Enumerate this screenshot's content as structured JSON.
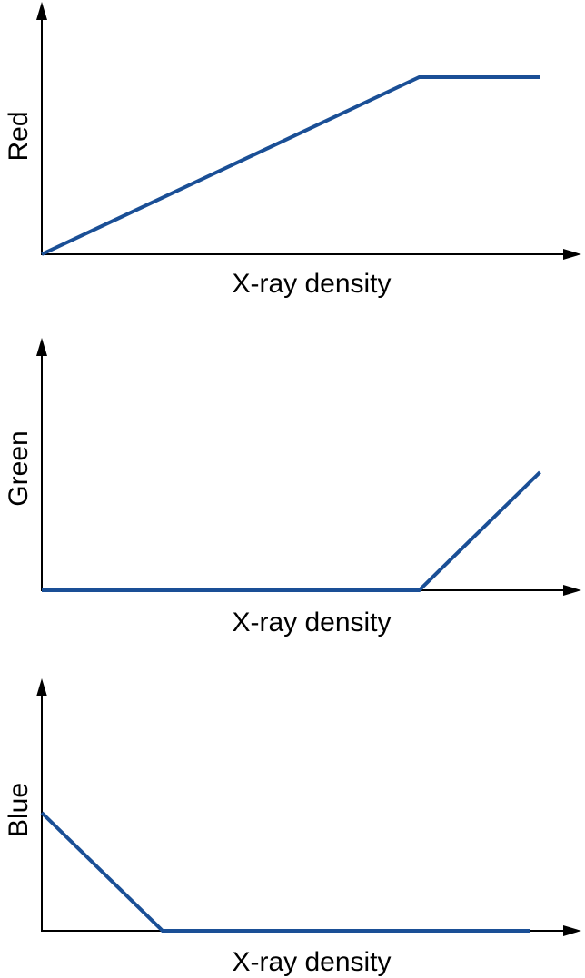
{
  "colors": {
    "series": "#1a4f96",
    "axis": "#000000"
  },
  "chart_data": [
    {
      "type": "line",
      "xlabel": "X-ray density",
      "ylabel": "Red",
      "xlim": [
        0,
        100
      ],
      "ylim": [
        0,
        100
      ],
      "series": [
        {
          "points": [
            [
              0,
              0
            ],
            [
              75,
              75
            ],
            [
              99,
              75
            ]
          ]
        }
      ]
    },
    {
      "type": "line",
      "xlabel": "X-ray density",
      "ylabel": "Green",
      "xlim": [
        0,
        100
      ],
      "ylim": [
        0,
        100
      ],
      "series": [
        {
          "points": [
            [
              0,
              0
            ],
            [
              75,
              0
            ],
            [
              99,
              50
            ]
          ]
        }
      ]
    },
    {
      "type": "line",
      "xlabel": "X-ray density",
      "ylabel": "Blue",
      "xlim": [
        0,
        100
      ],
      "ylim": [
        0,
        100
      ],
      "series": [
        {
          "points": [
            [
              0,
              50
            ],
            [
              24,
              0
            ],
            [
              97,
              0
            ]
          ]
        }
      ]
    }
  ]
}
